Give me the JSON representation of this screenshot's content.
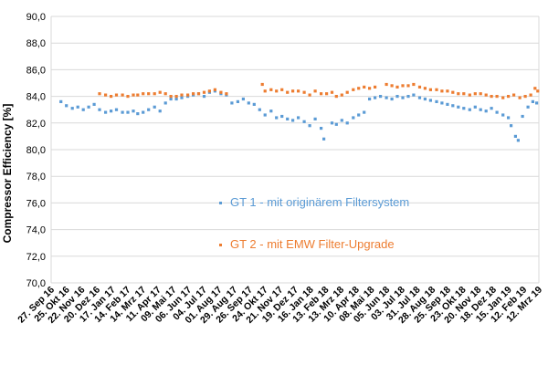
{
  "chart_data": {
    "type": "scatter",
    "ylabel": "Compressor Efficiency [%]",
    "ylim": [
      70,
      90
    ],
    "yticks": [
      "70,0",
      "72,0",
      "74,0",
      "76,0",
      "78,0",
      "80,0",
      "82,0",
      "84,0",
      "86,0",
      "88,0",
      "90,0"
    ],
    "grid": true,
    "xlim": [
      "2016-09-27",
      "2019-03-12"
    ],
    "xticks": [
      "27. Sep 16",
      "25. Okt 16",
      "22. Nov 16",
      "20. Dez 16",
      "17. Jan 17",
      "14. Feb 17",
      "14. Mrz 17",
      "11. Apr 17",
      "09. Mai 17",
      "06. Jun 17",
      "04. Jul 17",
      "01. Aug 17",
      "29. Aug 17",
      "26. Sep 17",
      "24. Okt 17",
      "21. Nov 17",
      "19. Dez 17",
      "16. Jan 18",
      "13. Feb 18",
      "13. Mrz 18",
      "10. Apr 18",
      "08. Mai 18",
      "05. Jun 18",
      "03. Jul 18",
      "31. Jul 18",
      "28. Aug 18",
      "25. Sep 18",
      "23. Okt 18",
      "20. Nov 18",
      "18. Dez 18",
      "15. Jan 19",
      "12. Feb 19",
      "12. Mrz 19"
    ],
    "legend_position": "center-left",
    "series": [
      {
        "name": "GT 1 - mit originärem Filtersystem",
        "color": "#5b9bd5",
        "points": [
          [
            "2016-10-15",
            83.6
          ],
          [
            "2016-10-25",
            83.3
          ],
          [
            "2016-11-05",
            83.1
          ],
          [
            "2016-11-15",
            83.2
          ],
          [
            "2016-11-25",
            83.0
          ],
          [
            "2016-12-05",
            83.2
          ],
          [
            "2016-12-15",
            83.4
          ],
          [
            "2016-12-25",
            83.0
          ],
          [
            "2017-01-05",
            82.8
          ],
          [
            "2017-01-15",
            82.9
          ],
          [
            "2017-01-25",
            83.0
          ],
          [
            "2017-02-05",
            82.8
          ],
          [
            "2017-02-15",
            82.8
          ],
          [
            "2017-02-25",
            82.9
          ],
          [
            "2017-03-05",
            82.7
          ],
          [
            "2017-03-15",
            82.8
          ],
          [
            "2017-03-25",
            83.0
          ],
          [
            "2017-04-05",
            83.2
          ],
          [
            "2017-04-15",
            82.9
          ],
          [
            "2017-04-25",
            83.5
          ],
          [
            "2017-05-05",
            83.8
          ],
          [
            "2017-05-15",
            83.8
          ],
          [
            "2017-05-25",
            83.9
          ],
          [
            "2017-06-05",
            84.0
          ],
          [
            "2017-06-15",
            84.1
          ],
          [
            "2017-06-25",
            84.2
          ],
          [
            "2017-07-05",
            84.0
          ],
          [
            "2017-07-15",
            84.3
          ],
          [
            "2017-07-25",
            84.4
          ],
          [
            "2017-08-05",
            84.2
          ],
          [
            "2017-08-15",
            84.1
          ],
          [
            "2017-08-25",
            83.5
          ],
          [
            "2017-09-05",
            83.6
          ],
          [
            "2017-09-15",
            83.8
          ],
          [
            "2017-09-25",
            83.5
          ],
          [
            "2017-10-05",
            83.4
          ],
          [
            "2017-10-15",
            83.0
          ],
          [
            "2017-10-25",
            82.6
          ],
          [
            "2017-11-05",
            82.9
          ],
          [
            "2017-11-15",
            82.4
          ],
          [
            "2017-11-25",
            82.5
          ],
          [
            "2017-12-05",
            82.3
          ],
          [
            "2017-12-15",
            82.2
          ],
          [
            "2017-12-25",
            82.4
          ],
          [
            "2018-01-05",
            82.1
          ],
          [
            "2018-01-15",
            81.8
          ],
          [
            "2018-01-25",
            82.3
          ],
          [
            "2018-02-05",
            81.6
          ],
          [
            "2018-02-10",
            80.8
          ],
          [
            "2018-02-25",
            82.0
          ],
          [
            "2018-03-05",
            81.9
          ],
          [
            "2018-03-15",
            82.2
          ],
          [
            "2018-03-25",
            82.0
          ],
          [
            "2018-04-05",
            82.4
          ],
          [
            "2018-04-15",
            82.6
          ],
          [
            "2018-04-25",
            82.8
          ],
          [
            "2018-05-05",
            83.8
          ],
          [
            "2018-05-15",
            83.9
          ],
          [
            "2018-05-25",
            84.0
          ],
          [
            "2018-06-05",
            83.9
          ],
          [
            "2018-06-15",
            83.8
          ],
          [
            "2018-06-25",
            84.0
          ],
          [
            "2018-07-05",
            83.9
          ],
          [
            "2018-07-15",
            84.0
          ],
          [
            "2018-07-25",
            84.1
          ],
          [
            "2018-08-05",
            83.9
          ],
          [
            "2018-08-15",
            83.8
          ],
          [
            "2018-08-25",
            83.7
          ],
          [
            "2018-09-05",
            83.6
          ],
          [
            "2018-09-15",
            83.5
          ],
          [
            "2018-09-25",
            83.4
          ],
          [
            "2018-10-05",
            83.3
          ],
          [
            "2018-10-15",
            83.2
          ],
          [
            "2018-10-25",
            83.1
          ],
          [
            "2018-11-05",
            83.0
          ],
          [
            "2018-11-15",
            83.2
          ],
          [
            "2018-11-25",
            83.0
          ],
          [
            "2018-12-05",
            82.9
          ],
          [
            "2018-12-15",
            83.1
          ],
          [
            "2018-12-25",
            82.8
          ],
          [
            "2019-01-05",
            82.6
          ],
          [
            "2019-01-15",
            82.4
          ],
          [
            "2019-01-20",
            81.8
          ],
          [
            "2019-01-28",
            81.0
          ],
          [
            "2019-02-02",
            80.7
          ],
          [
            "2019-02-10",
            82.5
          ],
          [
            "2019-02-20",
            83.2
          ],
          [
            "2019-03-01",
            83.6
          ],
          [
            "2019-03-08",
            83.5
          ]
        ]
      },
      {
        "name": "GT 2 - mit EMW Filter-Upgrade",
        "color": "#ed7d31",
        "points": [
          [
            "2016-12-25",
            84.2
          ],
          [
            "2017-01-05",
            84.1
          ],
          [
            "2017-01-15",
            84.0
          ],
          [
            "2017-01-25",
            84.1
          ],
          [
            "2017-02-05",
            84.1
          ],
          [
            "2017-02-15",
            84.0
          ],
          [
            "2017-02-25",
            84.1
          ],
          [
            "2017-03-05",
            84.1
          ],
          [
            "2017-03-15",
            84.2
          ],
          [
            "2017-03-25",
            84.2
          ],
          [
            "2017-04-05",
            84.2
          ],
          [
            "2017-04-15",
            84.3
          ],
          [
            "2017-04-25",
            84.2
          ],
          [
            "2017-05-05",
            84.0
          ],
          [
            "2017-05-15",
            84.0
          ],
          [
            "2017-05-25",
            84.1
          ],
          [
            "2017-06-05",
            84.1
          ],
          [
            "2017-06-15",
            84.2
          ],
          [
            "2017-06-25",
            84.2
          ],
          [
            "2017-07-05",
            84.3
          ],
          [
            "2017-07-15",
            84.4
          ],
          [
            "2017-07-25",
            84.5
          ],
          [
            "2017-08-05",
            84.3
          ],
          [
            "2017-08-15",
            84.2
          ],
          [
            "2017-10-20",
            84.9
          ],
          [
            "2017-10-25",
            84.4
          ],
          [
            "2017-11-05",
            84.5
          ],
          [
            "2017-11-15",
            84.4
          ],
          [
            "2017-11-25",
            84.5
          ],
          [
            "2017-12-05",
            84.3
          ],
          [
            "2017-12-15",
            84.4
          ],
          [
            "2017-12-25",
            84.4
          ],
          [
            "2018-01-05",
            84.3
          ],
          [
            "2018-01-15",
            84.1
          ],
          [
            "2018-01-25",
            84.4
          ],
          [
            "2018-02-05",
            84.2
          ],
          [
            "2018-02-15",
            84.2
          ],
          [
            "2018-02-25",
            84.3
          ],
          [
            "2018-03-05",
            84.0
          ],
          [
            "2018-03-15",
            84.1
          ],
          [
            "2018-03-25",
            84.3
          ],
          [
            "2018-04-05",
            84.5
          ],
          [
            "2018-04-15",
            84.6
          ],
          [
            "2018-04-25",
            84.7
          ],
          [
            "2018-05-05",
            84.6
          ],
          [
            "2018-05-15",
            84.7
          ],
          [
            "2018-06-05",
            84.9
          ],
          [
            "2018-06-15",
            84.8
          ],
          [
            "2018-06-25",
            84.7
          ],
          [
            "2018-07-05",
            84.8
          ],
          [
            "2018-07-15",
            84.8
          ],
          [
            "2018-07-25",
            84.9
          ],
          [
            "2018-08-05",
            84.7
          ],
          [
            "2018-08-15",
            84.6
          ],
          [
            "2018-08-25",
            84.5
          ],
          [
            "2018-09-05",
            84.5
          ],
          [
            "2018-09-15",
            84.4
          ],
          [
            "2018-09-25",
            84.4
          ],
          [
            "2018-10-05",
            84.3
          ],
          [
            "2018-10-15",
            84.2
          ],
          [
            "2018-10-25",
            84.2
          ],
          [
            "2018-11-05",
            84.1
          ],
          [
            "2018-11-15",
            84.2
          ],
          [
            "2018-11-25",
            84.2
          ],
          [
            "2018-12-05",
            84.1
          ],
          [
            "2018-12-15",
            84.0
          ],
          [
            "2018-12-25",
            84.0
          ],
          [
            "2019-01-05",
            83.9
          ],
          [
            "2019-01-15",
            84.0
          ],
          [
            "2019-01-25",
            84.1
          ],
          [
            "2019-02-05",
            83.9
          ],
          [
            "2019-02-15",
            84.0
          ],
          [
            "2019-02-25",
            84.1
          ],
          [
            "2019-03-05",
            84.6
          ],
          [
            "2019-03-10",
            84.4
          ]
        ]
      }
    ]
  }
}
